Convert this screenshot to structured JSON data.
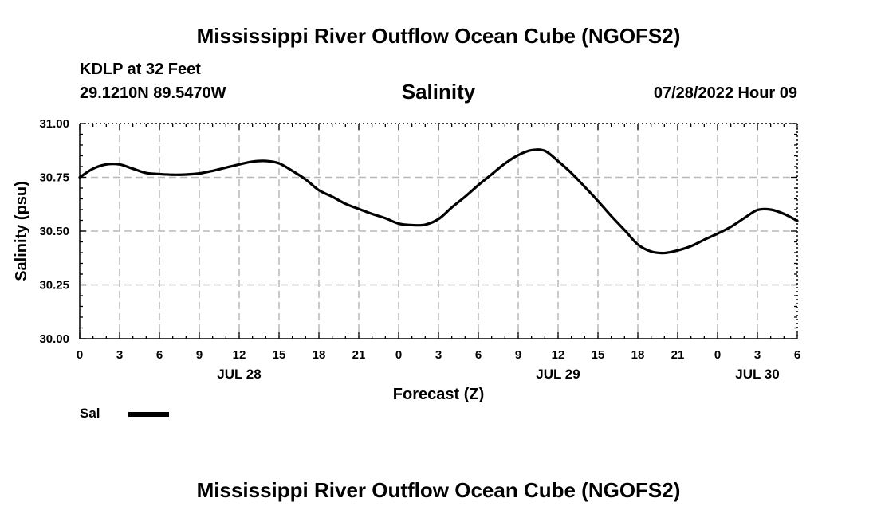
{
  "header": {
    "title": "Mississippi River Outflow Ocean Cube (NGOFS2)",
    "station": "KDLP at 32 Feet",
    "coords": "29.1210N  89.5470W",
    "chart_title": "Salinity",
    "forecast_time": "07/28/2022 Hour 09"
  },
  "footer": {
    "title": "Mississippi River Outflow Ocean Cube (NGOFS2)"
  },
  "legend": {
    "label": "Sal",
    "color": "#000000"
  },
  "chart_data": {
    "type": "line",
    "title": "Salinity",
    "xlabel": "Forecast (Z)",
    "ylabel": "Salinity (psu)",
    "ylim": [
      30.0,
      31.0
    ],
    "xlim": [
      0,
      54
    ],
    "grid": true,
    "x_tick_values": [
      0,
      3,
      6,
      9,
      12,
      15,
      18,
      21,
      24,
      27,
      30,
      33,
      36,
      39,
      42,
      45,
      48,
      51,
      54
    ],
    "x_tick_labels": [
      "0",
      "3",
      "6",
      "9",
      "12",
      "15",
      "18",
      "21",
      "0",
      "3",
      "6",
      "9",
      "12",
      "15",
      "18",
      "21",
      "0",
      "3",
      "6"
    ],
    "y_ticks": [
      30.0,
      30.25,
      30.5,
      30.75,
      31.0
    ],
    "y_tick_labels": [
      "30.00",
      "30.25",
      "30.50",
      "30.75",
      "31.00"
    ],
    "day_labels": [
      {
        "x": 12,
        "label": "JUL 28"
      },
      {
        "x": 36,
        "label": "JUL 29"
      },
      {
        "x": 51,
        "label": "JUL 30"
      }
    ],
    "series": [
      {
        "name": "Sal",
        "x": [
          0,
          1,
          2,
          3,
          4,
          5,
          6,
          7,
          8,
          9,
          10,
          11,
          12,
          13,
          14,
          15,
          16,
          17,
          18,
          19,
          20,
          21,
          22,
          23,
          24,
          25,
          26,
          27,
          28,
          29,
          30,
          31,
          32,
          33,
          34,
          35,
          36,
          37,
          38,
          39,
          40,
          41,
          42,
          43,
          44,
          45,
          46,
          47,
          48,
          49,
          50,
          51,
          52,
          53,
          54
        ],
        "values": [
          30.75,
          30.79,
          30.81,
          30.81,
          30.79,
          30.77,
          30.765,
          30.762,
          30.763,
          30.768,
          30.78,
          30.795,
          30.81,
          30.823,
          30.826,
          30.815,
          30.78,
          30.74,
          30.69,
          30.66,
          30.627,
          30.603,
          30.58,
          30.56,
          30.535,
          30.528,
          30.53,
          30.556,
          30.61,
          30.66,
          30.714,
          30.764,
          30.814,
          30.853,
          30.876,
          30.873,
          30.825,
          30.77,
          30.706,
          30.64,
          30.57,
          30.505,
          30.438,
          30.405,
          30.398,
          30.41,
          30.43,
          30.46,
          30.488,
          30.52,
          30.56,
          30.598,
          30.6,
          30.58,
          30.548
        ]
      }
    ]
  }
}
